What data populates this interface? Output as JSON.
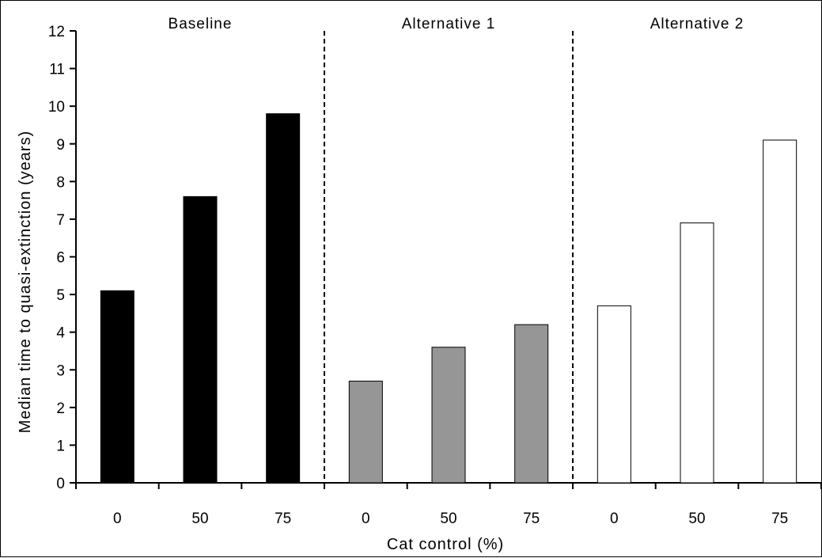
{
  "chart_data": {
    "type": "bar",
    "xlabel": "Cat control (%)",
    "ylabel": "Median time to quasi-extinction (years)",
    "ylim": [
      0,
      12
    ],
    "yticks": [
      "0",
      "1",
      "2",
      "3",
      "4",
      "5",
      "6",
      "7",
      "8",
      "9",
      "10",
      "11",
      "12"
    ],
    "grid": false,
    "legend": "none",
    "groups": [
      {
        "name": "Baseline",
        "color": "#000000",
        "categories": [
          "0",
          "50",
          "75"
        ],
        "values": [
          5.1,
          7.6,
          9.8
        ]
      },
      {
        "name": "Alternative 1",
        "color": "#969696",
        "categories": [
          "0",
          "50",
          "75"
        ],
        "values": [
          2.7,
          3.6,
          4.2
        ]
      },
      {
        "name": "Alternative 2",
        "color": "#ffffff",
        "categories": [
          "0",
          "50",
          "75"
        ],
        "values": [
          4.7,
          6.9,
          9.1
        ]
      }
    ]
  }
}
